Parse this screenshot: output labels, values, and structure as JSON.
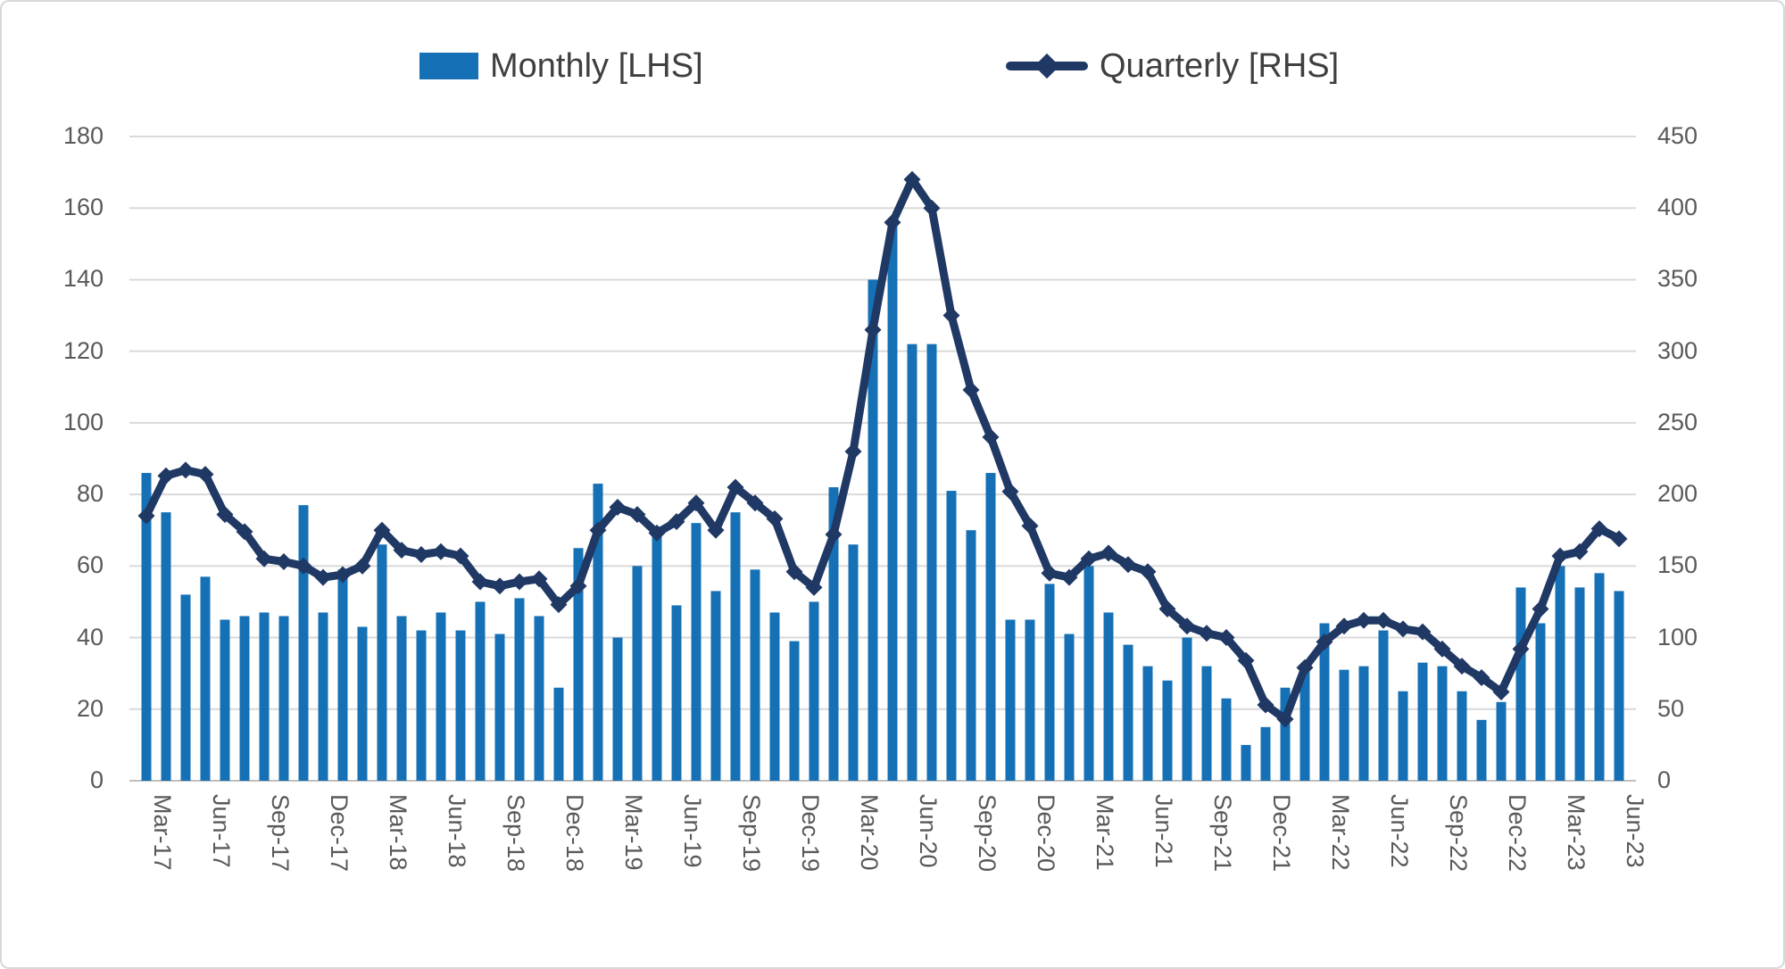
{
  "chart_data": {
    "type": "bar+line combo",
    "title": "",
    "legend_position": "top",
    "grid": true,
    "months": [
      "Mar-17",
      "Apr-17",
      "May-17",
      "Jun-17",
      "Jul-17",
      "Aug-17",
      "Sep-17",
      "Oct-17",
      "Nov-17",
      "Dec-17",
      "Jan-18",
      "Feb-18",
      "Mar-18",
      "Apr-18",
      "May-18",
      "Jun-18",
      "Jul-18",
      "Aug-18",
      "Sep-18",
      "Oct-18",
      "Nov-18",
      "Dec-18",
      "Jan-19",
      "Feb-19",
      "Mar-19",
      "Apr-19",
      "May-19",
      "Jun-19",
      "Jul-19",
      "Aug-19",
      "Sep-19",
      "Oct-19",
      "Nov-19",
      "Dec-19",
      "Jan-20",
      "Feb-20",
      "Mar-20",
      "Apr-20",
      "May-20",
      "Jun-20",
      "Jul-20",
      "Aug-20",
      "Sep-20",
      "Oct-20",
      "Nov-20",
      "Dec-20",
      "Jan-21",
      "Feb-21",
      "Mar-21",
      "Apr-21",
      "May-21",
      "Jun-21",
      "Jul-21",
      "Aug-21",
      "Sep-21",
      "Oct-21",
      "Nov-21",
      "Dec-21",
      "Jan-22",
      "Feb-22",
      "Mar-22",
      "Apr-22",
      "May-22",
      "Jun-22",
      "Jul-22",
      "Aug-22",
      "Sep-22",
      "Oct-22",
      "Nov-22",
      "Dec-22",
      "Jan-23",
      "Feb-23",
      "Mar-23",
      "Apr-23",
      "May-23",
      "Jun-23"
    ],
    "x_tick_labels": [
      "Mar-17",
      "Jun-17",
      "Sep-17",
      "Dec-17",
      "Mar-18",
      "Jun-18",
      "Sep-18",
      "Dec-18",
      "Mar-19",
      "Jun-19",
      "Sep-19",
      "Dec-19",
      "Mar-20",
      "Jun-20",
      "Sep-20",
      "Dec-20",
      "Mar-21",
      "Jun-21",
      "Sep-21",
      "Dec-21",
      "Mar-22",
      "Jun-22",
      "Sep-22",
      "Dec-22",
      "Mar-23",
      "Jun-23"
    ],
    "x_tick_every": 3,
    "series": [
      {
        "name": "Monthly [LHS]",
        "type": "bar",
        "axis": "left",
        "color": "#1570b5",
        "values": [
          86,
          75,
          52,
          57,
          45,
          46,
          47,
          46,
          77,
          47,
          59,
          43,
          66,
          46,
          42,
          47,
          42,
          50,
          41,
          51,
          46,
          26,
          65,
          83,
          40,
          60,
          71,
          49,
          72,
          53,
          75,
          59,
          47,
          39,
          50,
          82,
          66,
          140,
          156,
          122,
          122,
          81,
          70,
          86,
          45,
          45,
          55,
          41,
          60,
          47,
          38,
          32,
          28,
          40,
          32,
          23,
          10,
          15,
          26,
          31,
          44,
          31,
          32,
          42,
          25,
          33,
          32,
          25,
          17,
          22,
          54,
          44,
          60,
          54,
          58,
          53
        ]
      },
      {
        "name": "Quarterly [RHS]",
        "type": "line",
        "axis": "right",
        "color": "#1f3864",
        "marker": "diamond",
        "values": [
          185,
          213,
          217,
          214,
          186,
          174,
          155,
          153,
          150,
          142,
          144,
          150,
          175,
          161,
          158,
          160,
          157,
          139,
          136,
          139,
          141,
          123,
          136,
          175,
          191,
          186,
          173,
          181,
          194,
          175,
          205,
          194,
          183,
          146,
          135,
          172,
          230,
          315,
          390,
          420,
          400,
          325,
          273,
          240,
          202,
          178,
          145,
          142,
          155,
          159,
          151,
          146,
          120,
          108,
          103,
          100,
          84,
          53,
          43,
          79,
          97,
          108,
          112,
          112,
          106,
          104,
          92,
          80,
          72,
          62,
          92,
          120,
          157,
          160,
          176,
          169
        ]
      }
    ],
    "lhs": {
      "label": "",
      "range": [
        0,
        180
      ],
      "ticks": [
        0,
        20,
        40,
        60,
        80,
        100,
        120,
        140,
        160,
        180
      ]
    },
    "rhs": {
      "label": "",
      "range": [
        0,
        450
      ],
      "ticks": [
        0,
        50,
        100,
        150,
        200,
        250,
        300,
        350,
        400,
        450
      ]
    }
  },
  "style": {
    "gridline_color": "#d9d9d9",
    "baseline_color": "#bfbfbf",
    "tick_text_color": "#595959",
    "legend_text_color": "#3f3f3f",
    "background": "#ffffff"
  }
}
